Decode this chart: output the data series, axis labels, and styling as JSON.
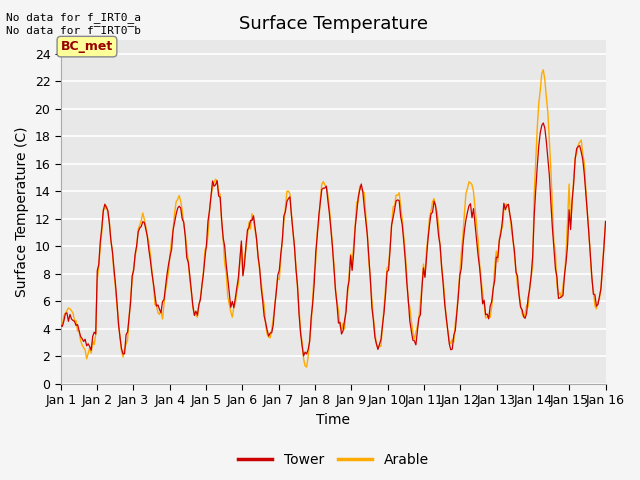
{
  "title": "Surface Temperature",
  "xlabel": "Time",
  "ylabel": "Surface Temperature (C)",
  "ylim": [
    0,
    25
  ],
  "yticks": [
    0,
    2,
    4,
    6,
    8,
    10,
    12,
    14,
    16,
    18,
    20,
    22,
    24
  ],
  "xtick_labels": [
    "Jan 1",
    "Jan 2",
    "Jan 3",
    "Jan 4",
    "Jan 5",
    "Jan 6",
    "Jan 7",
    "Jan 8",
    "Jan 9",
    "Jan 10",
    "Jan 11",
    "Jan 12",
    "Jan 13",
    "Jan 14",
    "Jan 15",
    "Jan 16"
  ],
  "tower_color": "#cc0000",
  "arable_color": "#ffaa00",
  "legend_entries": [
    "Tower",
    "Arable"
  ],
  "annotation_line1": "No data for f_IRT0_a",
  "annotation_line2": "No data for f̅IRT0̅b",
  "site_label": "BC_met",
  "site_label_color": "#990000",
  "site_label_bg": "#ffff99",
  "background_color": "#e8e8e8",
  "grid_color": "white",
  "title_fontsize": 13,
  "axis_label_fontsize": 10,
  "tick_fontsize": 9,
  "legend_fontsize": 10
}
